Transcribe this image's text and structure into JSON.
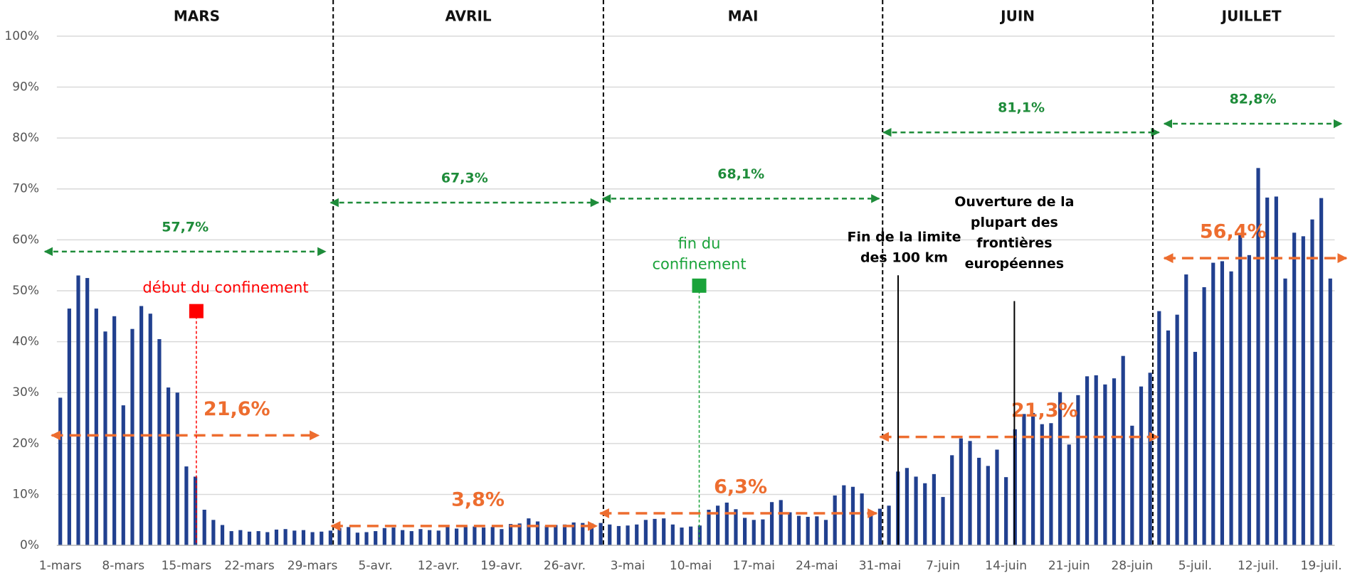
{
  "chart_data": {
    "type": "bar",
    "color": "#21408f",
    "categories": [
      "1-mars",
      null,
      null,
      null,
      null,
      null,
      null,
      "8-mars",
      null,
      null,
      null,
      null,
      null,
      null,
      "15-mars",
      null,
      null,
      null,
      null,
      null,
      null,
      "22-mars",
      null,
      null,
      null,
      null,
      null,
      null,
      "29-mars",
      null,
      null,
      null,
      null,
      null,
      null,
      "5-avr.",
      null,
      null,
      null,
      null,
      null,
      null,
      "12-avr.",
      null,
      null,
      null,
      null,
      null,
      null,
      "19-avr.",
      null,
      null,
      null,
      null,
      null,
      null,
      "26-avr.",
      null,
      null,
      null,
      null,
      null,
      null,
      "3-mai",
      null,
      null,
      null,
      null,
      null,
      null,
      "10-mai",
      null,
      null,
      null,
      null,
      null,
      null,
      "17-mai",
      null,
      null,
      null,
      null,
      null,
      null,
      "24-mai",
      null,
      null,
      null,
      null,
      null,
      null,
      "31-mai",
      null,
      null,
      null,
      null,
      null,
      null,
      "7-juin",
      null,
      null,
      null,
      null,
      null,
      null,
      "14-juin",
      null,
      null,
      null,
      null,
      null,
      null,
      "21-juin",
      null,
      null,
      null,
      null,
      null,
      null,
      "28-juin",
      null,
      null,
      null,
      null,
      null,
      null,
      "5-juil.",
      null,
      null,
      null,
      null,
      null,
      null,
      "12-juil.",
      null,
      null,
      null,
      null,
      null,
      null,
      "19-juil.",
      null
    ],
    "values": [
      29,
      46.5,
      53,
      52.5,
      46.5,
      42,
      45,
      27.5,
      42.5,
      47,
      45.5,
      40.5,
      31,
      30,
      15.5,
      13.5,
      7,
      5,
      4,
      2.8,
      3,
      2.7,
      2.8,
      2.6,
      3.1,
      3.2,
      2.9,
      3,
      2.6,
      2.7,
      2.9,
      3.4,
      3.6,
      2.5,
      2.6,
      2.8,
      3.4,
      3.5,
      3,
      2.8,
      3.2,
      3,
      2.9,
      3.6,
      3.3,
      3.8,
      3.7,
      3.5,
      3.6,
      3.2,
      4.2,
      4.3,
      5.3,
      4.7,
      3.8,
      4,
      4.1,
      4.5,
      4.4,
      4.3,
      4.4,
      4.1,
      3.8,
      3.9,
      4.1,
      5,
      5.2,
      5.3,
      4.1,
      3.5,
      3.7,
      3.9,
      7,
      7.8,
      8.4,
      7.1,
      5.4,
      5,
      5.1,
      8.5,
      8.9,
      6.5,
      5.8,
      5.6,
      5.7,
      5,
      9.8,
      11.8,
      11.5,
      10.2,
      6.6,
      7.2,
      7.8,
      14.5,
      15.2,
      13.5,
      12.2,
      14,
      9.5,
      17.7,
      21,
      20.5,
      17.2,
      15.6,
      18.8,
      13.4,
      22.8,
      25.8,
      26,
      23.8,
      24,
      30.1,
      19.8,
      29.5,
      33.2,
      33.4,
      31.6,
      32.8,
      37.2,
      23.5,
      31.2,
      33.9,
      46,
      42.2,
      45.3,
      53.2,
      38,
      50.7,
      55.5,
      55.8,
      53.8,
      60.9,
      57,
      74.1,
      68.3,
      68.5,
      52.4,
      61.4,
      60.7,
      64,
      68.2,
      52.4
    ],
    "ylim": [
      0,
      100
    ],
    "yticks": [
      {
        "value": 0,
        "label": "0%"
      },
      {
        "value": 10,
        "label": "10%"
      },
      {
        "value": 20,
        "label": "20%"
      },
      {
        "value": 30,
        "label": "30%"
      },
      {
        "value": 40,
        "label": "40%"
      },
      {
        "value": 50,
        "label": "50%"
      },
      {
        "value": 60,
        "label": "60%"
      },
      {
        "value": 70,
        "label": "70%"
      },
      {
        "value": 80,
        "label": "80%"
      },
      {
        "value": 90,
        "label": "90%"
      },
      {
        "value": 100,
        "label": "100%"
      }
    ],
    "grid": true,
    "months": [
      "MARS",
      "AVRIL",
      "MAI",
      "JUIN",
      "JUILLET"
    ],
    "monthly_average": [
      {
        "value": 57.7,
        "label": "57,7%"
      },
      {
        "value": 67.3,
        "label": "67,3%"
      },
      {
        "value": 68.1,
        "label": "68,1%"
      },
      {
        "value": 81.1,
        "label": "81,1%"
      },
      {
        "value": 82.8,
        "label": "82,8%"
      }
    ],
    "period_average": [
      {
        "value": 21.6,
        "label": "21,6%"
      },
      {
        "value": 3.8,
        "label": "3,8%"
      },
      {
        "value": 6.3,
        "label": "6,3%"
      },
      {
        "value": 21.3,
        "label": "21,3%"
      },
      {
        "value": 56.4,
        "label": "56,4%"
      }
    ],
    "events": [
      {
        "text": [
          "début du confinement"
        ],
        "value": 46
      },
      {
        "text": [
          "fin du",
          "confinement"
        ],
        "value": 51
      },
      {
        "text": [
          "Fin de la limite",
          "des 100 km"
        ]
      },
      {
        "text": [
          "Ouverture de la",
          "plupart des",
          "frontières",
          "européennes"
        ]
      }
    ]
  }
}
